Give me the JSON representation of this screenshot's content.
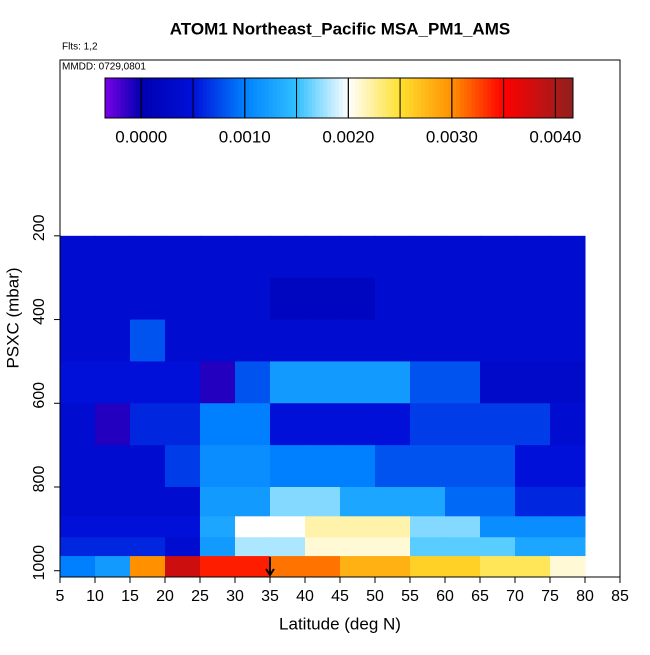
{
  "chart_data": {
    "type": "heatmap",
    "title": "ATOM1 Northeast_Pacific MSA_PM1_AMS",
    "annotations": [
      "Flts: 1,2",
      "MMDD: 0729,0801"
    ],
    "x_label": "Latitude (deg N)",
    "y_label": "PSXC (mbar)",
    "xlim": [
      5,
      85
    ],
    "xticks": [
      5,
      10,
      15,
      20,
      25,
      30,
      35,
      40,
      45,
      50,
      55,
      60,
      65,
      70,
      75,
      80,
      85
    ],
    "ylim": [
      1015,
      -220
    ],
    "yticks": [
      200,
      400,
      600,
      800,
      1000
    ],
    "lat_bins": [
      5,
      10,
      15,
      20,
      25,
      30,
      35,
      40,
      45,
      50,
      55,
      60,
      65,
      70,
      75,
      80
    ],
    "pressure_bins": [
      200,
      300,
      400,
      500,
      600,
      700,
      800,
      870,
      920,
      965,
      1015
    ],
    "z": [
      [
        0.0004,
        0.0004,
        0.0004,
        0.0004,
        0.0004,
        0.0004,
        0.0004,
        0.0004,
        0.0004,
        0.0004,
        0.0004,
        0.0004,
        0.0004,
        0.0004,
        0.0004
      ],
      [
        0.0004,
        0.0004,
        0.0004,
        0.0004,
        0.0004,
        0.0004,
        0.0002,
        0.0002,
        0.0002,
        0.0004,
        0.0004,
        0.0004,
        0.0004,
        0.0004,
        0.0004
      ],
      [
        0.0004,
        0.0004,
        0.0008,
        0.0004,
        0.0004,
        0.0004,
        0.0004,
        0.0004,
        0.0004,
        0.0004,
        0.0004,
        0.0004,
        0.0004,
        0.0004,
        0.0004
      ],
      [
        0.0005,
        0.0005,
        0.0005,
        0.0005,
        -0.0001,
        0.0008,
        0.0012,
        0.0012,
        0.0012,
        0.0012,
        0.0008,
        0.0008,
        0.0003,
        0.0003,
        0.0003
      ],
      [
        0.0004,
        -0.0001,
        0.0006,
        0.0006,
        0.001,
        0.001,
        0.0005,
        0.0005,
        0.0005,
        0.0005,
        0.0007,
        0.0007,
        0.0007,
        0.0007,
        0.0004
      ],
      [
        0.0004,
        0.0004,
        0.0004,
        0.0007,
        0.0011,
        0.0011,
        0.001,
        0.001,
        0.001,
        0.0008,
        0.0008,
        0.0008,
        0.0008,
        0.0005,
        0.0005
      ],
      [
        0.0004,
        0.0004,
        0.0004,
        0.0004,
        0.0012,
        0.0012,
        0.0017,
        0.0017,
        0.0013,
        0.0013,
        0.0013,
        0.0009,
        0.0009,
        0.0006,
        0.0006
      ],
      [
        0.0005,
        0.0005,
        0.0005,
        0.0005,
        0.0013,
        0.002,
        0.002,
        0.0022,
        0.0022,
        0.0022,
        0.0017,
        0.0017,
        0.0011,
        0.0011,
        0.0011
      ],
      [
        0.0006,
        0.0006,
        0.0006,
        0.0004,
        0.0012,
        0.0018,
        0.0018,
        0.0021,
        0.0021,
        0.0021,
        0.0016,
        0.0016,
        0.0016,
        0.0013,
        0.0013
      ],
      [
        0.001,
        0.0012,
        0.003,
        0.0038,
        0.0034,
        0.0034,
        0.0031,
        0.0031,
        0.0028,
        0.0028,
        0.0026,
        0.0026,
        0.0024,
        0.0024,
        0.0021
      ]
    ],
    "clim": [
      -0.00035,
      0.00417
    ],
    "cticks": [
      {
        "value": 0,
        "label": "0.0000"
      },
      {
        "value": 0.001,
        "label": "0.0010"
      },
      {
        "value": 0.002,
        "label": "0.0020"
      },
      {
        "value": 0.003,
        "label": "0.0030"
      },
      {
        "value": 0.004,
        "label": "0.0040"
      }
    ],
    "colorscale": [
      [
        -0.00035,
        "#7a00e6"
      ],
      [
        0,
        "#0000b0"
      ],
      [
        0.0005,
        "#0010d8"
      ],
      [
        0.001,
        "#0080ff"
      ],
      [
        0.0015,
        "#30c0ff"
      ],
      [
        0.002,
        "#ffffff"
      ],
      [
        0.0025,
        "#ffe030"
      ],
      [
        0.003,
        "#ff9000"
      ],
      [
        0.0035,
        "#ff0000"
      ],
      [
        0.00417,
        "#902020"
      ]
    ],
    "arrow_x": 35
  }
}
